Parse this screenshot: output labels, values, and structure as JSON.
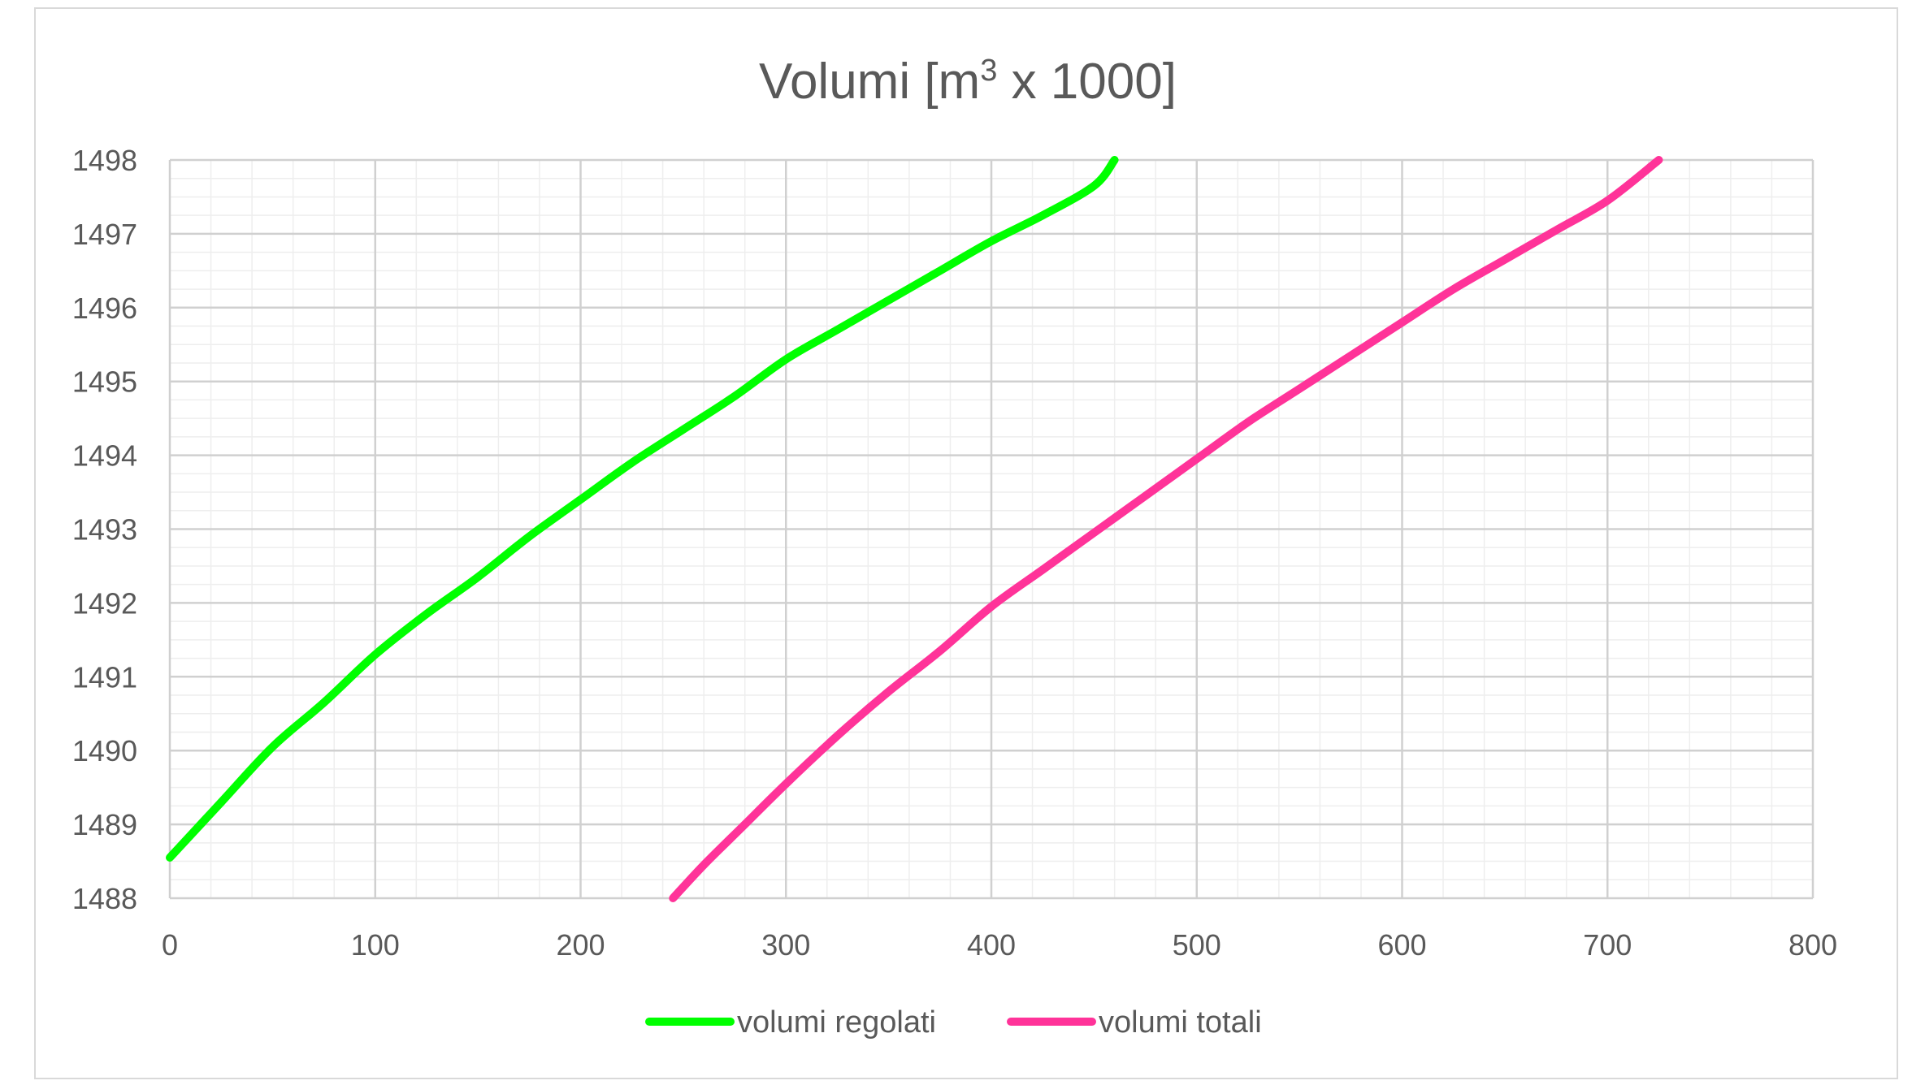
{
  "chart_data": {
    "type": "line",
    "title": "Volumi [m3 x 1000]",
    "title_parts": {
      "before": "Volumi [m",
      "sup": "3",
      "after": " x 1000]"
    },
    "xlim": [
      0,
      800
    ],
    "ylim": [
      1488,
      1498
    ],
    "x_ticks": [
      0,
      100,
      200,
      300,
      400,
      500,
      600,
      700,
      800
    ],
    "y_ticks": [
      1488,
      1489,
      1490,
      1491,
      1492,
      1493,
      1494,
      1495,
      1496,
      1497,
      1498
    ],
    "x_tick_labels": [
      "0",
      "100",
      "200",
      "300",
      "400",
      "500",
      "600",
      "700",
      "800"
    ],
    "y_tick_labels": [
      "1488",
      "1489",
      "1490",
      "1491",
      "1492",
      "1493",
      "1494",
      "1495",
      "1496",
      "1497",
      "1498"
    ],
    "grid": {
      "major": true,
      "minor": true,
      "minor_x_step": 20,
      "minor_y_step": 0.25
    },
    "legend_position": "bottom",
    "series": [
      {
        "name": "volumi regolati",
        "color": "#00ff00",
        "points": [
          [
            0,
            1488.55
          ],
          [
            25,
            1489.3
          ],
          [
            50,
            1490.05
          ],
          [
            75,
            1490.65
          ],
          [
            100,
            1491.3
          ],
          [
            125,
            1491.85
          ],
          [
            150,
            1492.35
          ],
          [
            175,
            1492.9
          ],
          [
            200,
            1493.4
          ],
          [
            225,
            1493.9
          ],
          [
            250,
            1494.35
          ],
          [
            275,
            1494.8
          ],
          [
            300,
            1495.3
          ],
          [
            325,
            1495.7
          ],
          [
            350,
            1496.1
          ],
          [
            375,
            1496.5
          ],
          [
            400,
            1496.9
          ],
          [
            425,
            1497.25
          ],
          [
            450,
            1497.65
          ],
          [
            460,
            1498.0
          ]
        ]
      },
      {
        "name": "volumi totali",
        "color": "#ff3399",
        "points": [
          [
            245,
            1488.0
          ],
          [
            260,
            1488.45
          ],
          [
            280,
            1489.0
          ],
          [
            300,
            1489.55
          ],
          [
            325,
            1490.2
          ],
          [
            350,
            1490.8
          ],
          [
            375,
            1491.35
          ],
          [
            400,
            1491.95
          ],
          [
            425,
            1492.45
          ],
          [
            450,
            1492.95
          ],
          [
            475,
            1493.45
          ],
          [
            500,
            1493.95
          ],
          [
            525,
            1494.45
          ],
          [
            550,
            1494.9
          ],
          [
            575,
            1495.35
          ],
          [
            600,
            1495.8
          ],
          [
            625,
            1496.25
          ],
          [
            650,
            1496.65
          ],
          [
            675,
            1497.05
          ],
          [
            700,
            1497.45
          ],
          [
            725,
            1498.0
          ]
        ]
      }
    ]
  }
}
